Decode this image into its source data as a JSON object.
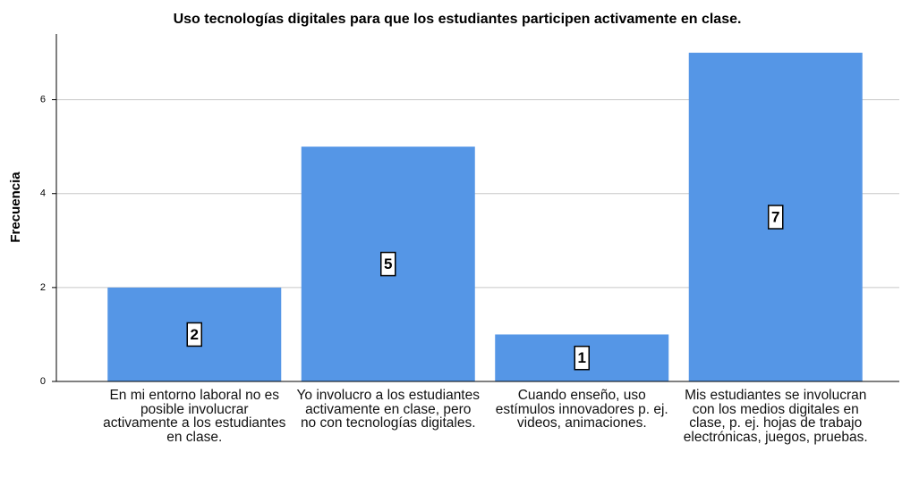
{
  "chart_data": {
    "type": "bar",
    "title": "Uso tecnologías digitales para que los estudiantes participen activamente en clase.",
    "y_label": "Frecuencia",
    "categories": [
      "En mi entorno laboral no es posible involucrar activamente a los estudiantes en clase.",
      "Yo involucro a los estudiantes activamente en clase, pero no con tecnologías digitales.",
      "Cuando enseño, uso estímulos innovadores p. ej. videos, animaciones.",
      "Mis estudiantes se involucran con los medios digitales en clase, p. ej. hojas de trabajo electrónicas, juegos, pruebas."
    ],
    "values": [
      2,
      5,
      1,
      7
    ],
    "color": "#5596e6",
    "ylim": [
      0,
      7.4
    ],
    "yticks": [
      0,
      2,
      4,
      6
    ],
    "grid": true
  }
}
